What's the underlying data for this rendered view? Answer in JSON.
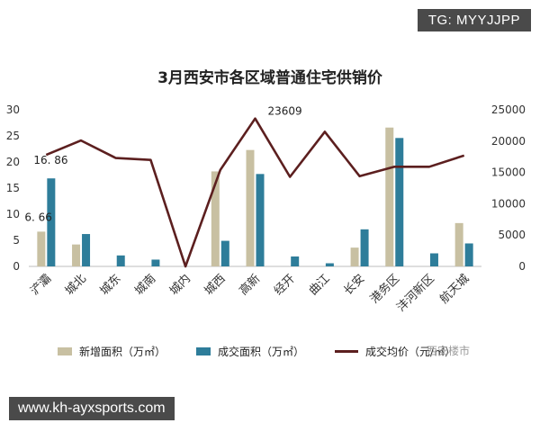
{
  "overlay": {
    "tg_label": "TG: MYYJJPP",
    "url": "www.kh-ayxsports.com",
    "watermark": "西安楼市"
  },
  "chart_data": {
    "type": "bar",
    "title": "3月西安市各区域普通住宅供销价",
    "categories": [
      "浐灞",
      "城北",
      "城东",
      "城南",
      "城内",
      "城西",
      "高新",
      "经开",
      "曲江",
      "长安",
      "港务区",
      "沣河新区",
      "航天城"
    ],
    "series": [
      {
        "name": "新增面积（万㎡）",
        "type": "bar",
        "axis": "left",
        "color": "#c8c0a2",
        "values": [
          6.66,
          4.2,
          0,
          0,
          0,
          18.2,
          22.3,
          0,
          0,
          3.6,
          26.6,
          0,
          8.3
        ]
      },
      {
        "name": "成交面积（万㎡）",
        "type": "bar",
        "axis": "left",
        "color": "#2e7d9a",
        "values": [
          16.86,
          6.2,
          2.1,
          1.3,
          0,
          4.9,
          17.7,
          1.9,
          0.6,
          7.1,
          24.6,
          2.5,
          4.4
        ]
      },
      {
        "name": "成交均价（元/㎡）",
        "type": "line",
        "axis": "right",
        "color": "#5c1f1f",
        "values": [
          17800,
          20100,
          17300,
          17000,
          0,
          15400,
          23609,
          14300,
          21500,
          14400,
          15900,
          15900,
          17700
        ]
      }
    ],
    "y_left": {
      "lim": [
        0,
        30
      ],
      "ticks": [
        "0",
        "5",
        "10",
        "15",
        "20",
        "25",
        "30"
      ]
    },
    "y_right": {
      "lim": [
        0,
        25000
      ],
      "ticks": [
        "0",
        "5000",
        "10000",
        "15000",
        "20000",
        "25000"
      ]
    },
    "data_labels": [
      {
        "text": "16. 86",
        "series": 1,
        "index": 0
      },
      {
        "text": "6. 66",
        "series": 0,
        "index": 0
      },
      {
        "text": "23609",
        "series": 2,
        "index": 6
      }
    ],
    "legend_position": "bottom",
    "grid": false
  }
}
